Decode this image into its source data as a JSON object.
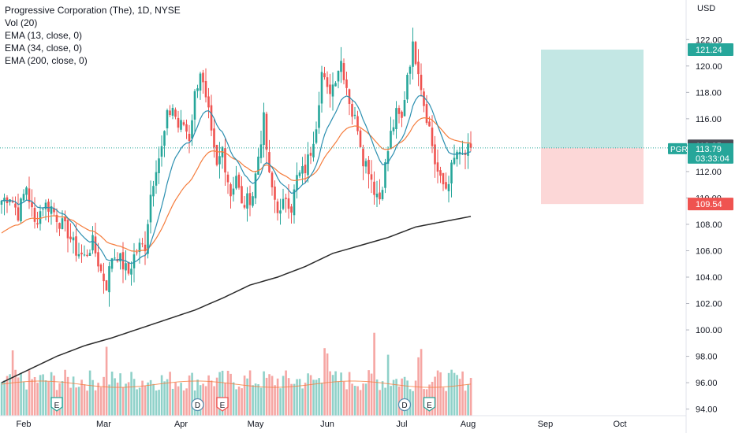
{
  "legend": {
    "title": "Progressive Corporation (The), 1D, NYSE",
    "vol": "Vol (20)",
    "ema13": "EMA (13, close, 0)",
    "ema34": "EMA (34, close, 0)",
    "ema200": "EMA (200, close, 0)"
  },
  "currency": "USD",
  "colors": {
    "up": "#26a69a",
    "down": "#ef5350",
    "ema13": "#2b8fb0",
    "ema34": "#f57c3c",
    "ema200": "#2a2a2a",
    "target_fill": "#b9e3df",
    "stop_fill": "#fbd0d0",
    "vol_up": "#8fd1c9",
    "vol_down": "#f6a6a3"
  },
  "markers": {
    "symbol": "PGR",
    "current_price": "113.79",
    "countdown": "03:33:04",
    "crosshair_price": "113.95",
    "target_price": "121.24",
    "stop_price": "109.54"
  },
  "events": [
    {
      "label": "E",
      "day": 20
    },
    {
      "label": "D",
      "day": 71
    },
    {
      "label": "E",
      "day": 80
    },
    {
      "label": "D",
      "day": 146
    },
    {
      "label": "E",
      "day": 155
    }
  ],
  "chart_data": {
    "type": "candlestick",
    "y_axis": {
      "min": 93.5,
      "max": 125,
      "ticks": [
        94,
        96,
        98,
        100,
        102,
        104,
        106,
        108,
        110,
        112,
        114,
        116,
        118,
        120,
        122,
        124
      ]
    },
    "x_axis": {
      "labels": [
        {
          "label": "Feb",
          "day": 8
        },
        {
          "label": "Mar",
          "day": 37
        },
        {
          "label": "Apr",
          "day": 65
        },
        {
          "label": "May",
          "day": 92
        },
        {
          "label": "Jun",
          "day": 118
        },
        {
          "label": "Jul",
          "day": 145
        },
        {
          "label": "Aug",
          "day": 169
        },
        {
          "label": "Sep",
          "day": 197
        },
        {
          "label": "Oct",
          "day": 224
        }
      ]
    },
    "close_path": [
      [
        0,
        109.8
      ],
      [
        3,
        110.2
      ],
      [
        6,
        108.8
      ],
      [
        9,
        110.9
      ],
      [
        12,
        108.0
      ],
      [
        15,
        109.5
      ],
      [
        18,
        109.3
      ],
      [
        21,
        108.2
      ],
      [
        24,
        107.4
      ],
      [
        27,
        106.0
      ],
      [
        30,
        105.5
      ],
      [
        33,
        106.6
      ],
      [
        36,
        104.4
      ],
      [
        38,
        103.4
      ],
      [
        40,
        105.6
      ],
      [
        42,
        105.7
      ],
      [
        44,
        104.9
      ],
      [
        46,
        104.3
      ],
      [
        48,
        105.6
      ],
      [
        50,
        106.3
      ],
      [
        52,
        106.4
      ],
      [
        54,
        110.3
      ],
      [
        56,
        112.5
      ],
      [
        58,
        113.7
      ],
      [
        60,
        116.1
      ],
      [
        62,
        116.9
      ],
      [
        64,
        115.4
      ],
      [
        66,
        115.6
      ],
      [
        68,
        114.6
      ],
      [
        70,
        117.8
      ],
      [
        72,
        119.7
      ],
      [
        74,
        117.2
      ],
      [
        75,
        116.3
      ],
      [
        76,
        114.6
      ],
      [
        78,
        112.2
      ],
      [
        80,
        113.8
      ],
      [
        81,
        112.5
      ],
      [
        83,
        110.3
      ],
      [
        85,
        111.8
      ],
      [
        87,
        109.3
      ],
      [
        89,
        109.8
      ],
      [
        91,
        110.3
      ],
      [
        93,
        113.2
      ],
      [
        95,
        115.9
      ],
      [
        97,
        111.5
      ],
      [
        99,
        109.9
      ],
      [
        101,
        108.7
      ],
      [
        103,
        110.2
      ],
      [
        105,
        109.3
      ],
      [
        107,
        111.5
      ],
      [
        110,
        112.2
      ],
      [
        112,
        113.6
      ],
      [
        114,
        115.7
      ],
      [
        116,
        119.5
      ],
      [
        118,
        118.0
      ],
      [
        120,
        118.6
      ],
      [
        122,
        119.9
      ],
      [
        123,
        120.4
      ],
      [
        125,
        118.5
      ],
      [
        127,
        116.4
      ],
      [
        129,
        115.5
      ],
      [
        131,
        113.0
      ],
      [
        133,
        112.3
      ],
      [
        135,
        110.7
      ],
      [
        137,
        110.0
      ],
      [
        139,
        112.4
      ],
      [
        141,
        114.8
      ],
      [
        143,
        116.3
      ],
      [
        145,
        115.9
      ],
      [
        147,
        119.5
      ],
      [
        149,
        121.4
      ],
      [
        151,
        119.9
      ],
      [
        153,
        117.2
      ],
      [
        155,
        115.3
      ],
      [
        157,
        112.7
      ],
      [
        159,
        111.2
      ],
      [
        161,
        110.8
      ],
      [
        163,
        112.2
      ],
      [
        165,
        113.5
      ],
      [
        166,
        113.0
      ],
      [
        168,
        113.3
      ],
      [
        170,
        113.8
      ]
    ],
    "ema200_path": [
      [
        0,
        96.0
      ],
      [
        10,
        97.0
      ],
      [
        20,
        98.0
      ],
      [
        30,
        98.8
      ],
      [
        40,
        99.4
      ],
      [
        50,
        100.1
      ],
      [
        60,
        100.8
      ],
      [
        70,
        101.5
      ],
      [
        80,
        102.4
      ],
      [
        90,
        103.4
      ],
      [
        100,
        104.0
      ],
      [
        110,
        104.8
      ],
      [
        120,
        105.8
      ],
      [
        130,
        106.4
      ],
      [
        140,
        107.0
      ],
      [
        150,
        107.8
      ],
      [
        160,
        108.2
      ],
      [
        170,
        108.6
      ]
    ],
    "volume_note": "Vol (20)"
  }
}
